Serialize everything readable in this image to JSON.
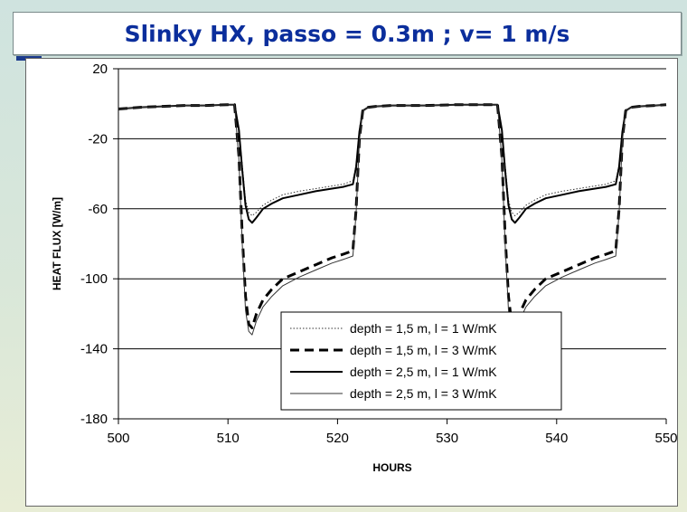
{
  "page": {
    "title": "Slinky HX, passo = 0.3m ; v= 1 m/s",
    "accent_color": "#1b3a8c",
    "title_color": "#0b2e9c"
  },
  "chart_data": {
    "type": "line",
    "title": "",
    "xlabel": "HOURS",
    "ylabel": "HEAT FLUX [W/m]",
    "xlim": [
      500,
      550
    ],
    "ylim": [
      -180,
      20
    ],
    "xticks": [
      500,
      510,
      520,
      530,
      540,
      550
    ],
    "yticks": [
      20,
      -20,
      -60,
      -100,
      -140,
      -180
    ],
    "grid": "horizontal",
    "legend_position": "bottom-right",
    "series": [
      {
        "name": "depth = 1,5 m, l = 1 W/mK",
        "style": "dotted",
        "x": [
          500,
          502,
          504,
          506,
          508,
          510,
          510.6,
          511,
          511.3,
          511.6,
          511.9,
          512.2,
          512.6,
          513.2,
          514,
          515,
          516.5,
          518,
          519.5,
          520.5,
          521.4,
          521.7,
          522,
          522.3,
          522.8,
          523.5,
          525,
          528,
          531,
          534,
          534.6,
          535,
          535.3,
          535.6,
          535.9,
          536.2,
          536.6,
          537.2,
          538,
          539,
          540.5,
          542,
          543.5,
          544.5,
          545.4,
          545.7,
          546,
          546.3,
          546.8,
          547.5,
          549,
          550
        ],
        "values": [
          -3,
          -2,
          -1.5,
          -1,
          -1,
          -0.5,
          -0.5,
          -15,
          -35,
          -55,
          -62,
          -64,
          -62,
          -58,
          -55,
          -52,
          -50,
          -48.5,
          -47,
          -46,
          -44,
          -35,
          -15,
          -4,
          -2,
          -1.5,
          -1,
          -1,
          -0.5,
          -0.5,
          -0.5,
          -15,
          -35,
          -55,
          -62,
          -64,
          -62,
          -58,
          -55,
          -52,
          -50,
          -48.5,
          -47,
          -46,
          -44,
          -35,
          -15,
          -4,
          -2,
          -1.5,
          -1,
          -0.5
        ]
      },
      {
        "name": "depth = 1,5 m, l = 3 W/mK",
        "style": "dashed",
        "x": [
          500,
          502,
          504,
          506,
          508,
          510,
          510.6,
          511,
          511.3,
          511.6,
          511.9,
          512.2,
          512.6,
          513.2,
          514,
          515,
          516.5,
          518,
          519.5,
          520.5,
          521.4,
          521.7,
          522,
          522.3,
          522.8,
          523.5,
          525,
          528,
          531,
          534,
          534.6,
          535,
          535.3,
          535.6,
          535.9,
          536.2,
          536.6,
          537.2,
          538,
          539,
          540.5,
          542,
          543.5,
          544.5,
          545.4,
          545.7,
          546,
          546.3,
          546.8,
          547.5,
          549,
          550
        ],
        "values": [
          -3,
          -2,
          -1.5,
          -1,
          -1,
          -0.5,
          -0.5,
          -30,
          -75,
          -110,
          -126,
          -128,
          -120,
          -112,
          -106,
          -100,
          -96,
          -92,
          -88,
          -86,
          -84,
          -60,
          -20,
          -4,
          -2,
          -1.5,
          -1,
          -1,
          -0.5,
          -0.5,
          -0.5,
          -30,
          -75,
          -110,
          -126,
          -128,
          -120,
          -112,
          -106,
          -100,
          -96,
          -92,
          -88,
          -86,
          -84,
          -60,
          -20,
          -4,
          -2,
          -1.5,
          -1,
          -0.5
        ]
      },
      {
        "name": "depth = 2,5 m, l = 1 W/mK",
        "style": "solid-thick",
        "x": [
          500,
          502,
          504,
          506,
          508,
          510,
          510.6,
          511,
          511.3,
          511.6,
          511.9,
          512.2,
          512.6,
          513.2,
          514,
          515,
          516.5,
          518,
          519.5,
          520.5,
          521.4,
          521.7,
          522,
          522.3,
          522.8,
          523.5,
          525,
          528,
          531,
          534,
          534.6,
          535,
          535.3,
          535.6,
          535.9,
          536.2,
          536.6,
          537.2,
          538,
          539,
          540.5,
          542,
          543.5,
          544.5,
          545.4,
          545.7,
          546,
          546.3,
          546.8,
          547.5,
          549,
          550
        ],
        "values": [
          -3,
          -2,
          -1.5,
          -1,
          -1,
          -0.5,
          -0.5,
          -15,
          -38,
          -58,
          -66,
          -68,
          -65,
          -60,
          -57,
          -54,
          -52,
          -50,
          -48.5,
          -47.5,
          -46,
          -36,
          -16,
          -4,
          -2,
          -1.5,
          -1,
          -1,
          -0.5,
          -0.5,
          -0.5,
          -15,
          -38,
          -58,
          -66,
          -68,
          -65,
          -60,
          -57,
          -54,
          -52,
          -50,
          -48.5,
          -47.5,
          -46,
          -36,
          -16,
          -4,
          -2,
          -1.5,
          -1,
          -0.5
        ]
      },
      {
        "name": "depth = 2,5 m, l = 3 W/mK",
        "style": "solid-thin",
        "x": [
          500,
          502,
          504,
          506,
          508,
          510,
          510.6,
          511,
          511.3,
          511.6,
          511.9,
          512.2,
          512.6,
          513.2,
          514,
          515,
          516.5,
          518,
          519.5,
          520.5,
          521.4,
          521.7,
          522,
          522.3,
          522.8,
          523.5,
          525,
          528,
          531,
          534,
          534.6,
          535,
          535.3,
          535.6,
          535.9,
          536.2,
          536.6,
          537.2,
          538,
          539,
          540.5,
          542,
          543.5,
          544.5,
          545.4,
          545.7,
          546,
          546.3,
          546.8,
          547.5,
          549,
          550
        ],
        "values": [
          -3,
          -2,
          -1.5,
          -1,
          -1,
          -0.5,
          -0.5,
          -32,
          -80,
          -118,
          -130,
          -132,
          -124,
          -116,
          -110,
          -104,
          -99,
          -95,
          -91,
          -89,
          -87,
          -62,
          -21,
          -4,
          -2,
          -1.5,
          -1,
          -1,
          -0.5,
          -0.5,
          -0.5,
          -32,
          -80,
          -118,
          -130,
          -132,
          -124,
          -116,
          -110,
          -104,
          -99,
          -95,
          -91,
          -89,
          -87,
          -62,
          -21,
          -4,
          -2,
          -1.5,
          -1,
          -0.5
        ]
      }
    ]
  }
}
